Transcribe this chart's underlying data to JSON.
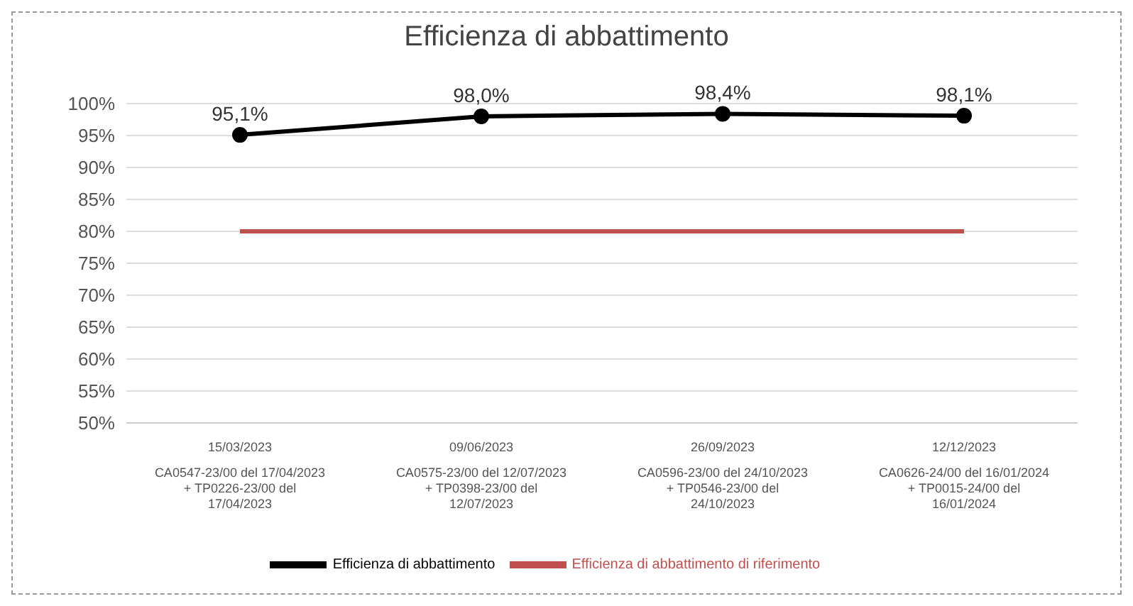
{
  "chart_data": {
    "type": "line",
    "title": "Efficienza di abbattimento",
    "categories": [
      "15/03/2023\nCA0547-23/00 del 17/04/2023\n+ TP0226-23/00 del\n17/04/2023",
      "09/06/2023\nCA0575-23/00 del 12/07/2023\n+ TP0398-23/00 del\n12/07/2023",
      "26/09/2023\nCA0596-23/00 del 24/10/2023\n+ TP0546-23/00 del\n24/10/2023",
      "12/12/2023\nCA0626-24/00 del 16/01/2024\n+ TP0015-24/00 del\n16/01/2024"
    ],
    "series": [
      {
        "name": "Efficienza di abbattimento",
        "color": "#000000",
        "values": [
          95.1,
          98.0,
          98.4,
          98.1
        ],
        "marker": "circle",
        "value_labels": [
          "95,1%",
          "98,0%",
          "98,4%",
          "98,1%"
        ]
      },
      {
        "name": "Efficienza di abbattimento di riferimento",
        "color": "#c0504d",
        "values": [
          80,
          80,
          80,
          80
        ],
        "marker": "none"
      }
    ],
    "ylim": [
      50,
      100
    ],
    "yticks": [
      {
        "value": 50,
        "label": "50%"
      },
      {
        "value": 55,
        "label": "55%"
      },
      {
        "value": 60,
        "label": "60%"
      },
      {
        "value": 65,
        "label": "65%"
      },
      {
        "value": 70,
        "label": "70%"
      },
      {
        "value": 75,
        "label": "75%"
      },
      {
        "value": 80,
        "label": "80%"
      },
      {
        "value": 85,
        "label": "85%"
      },
      {
        "value": 90,
        "label": "90%"
      },
      {
        "value": 95,
        "label": "95%"
      },
      {
        "value": 100,
        "label": "100%"
      }
    ],
    "grid": "y",
    "legend": "bottom"
  }
}
